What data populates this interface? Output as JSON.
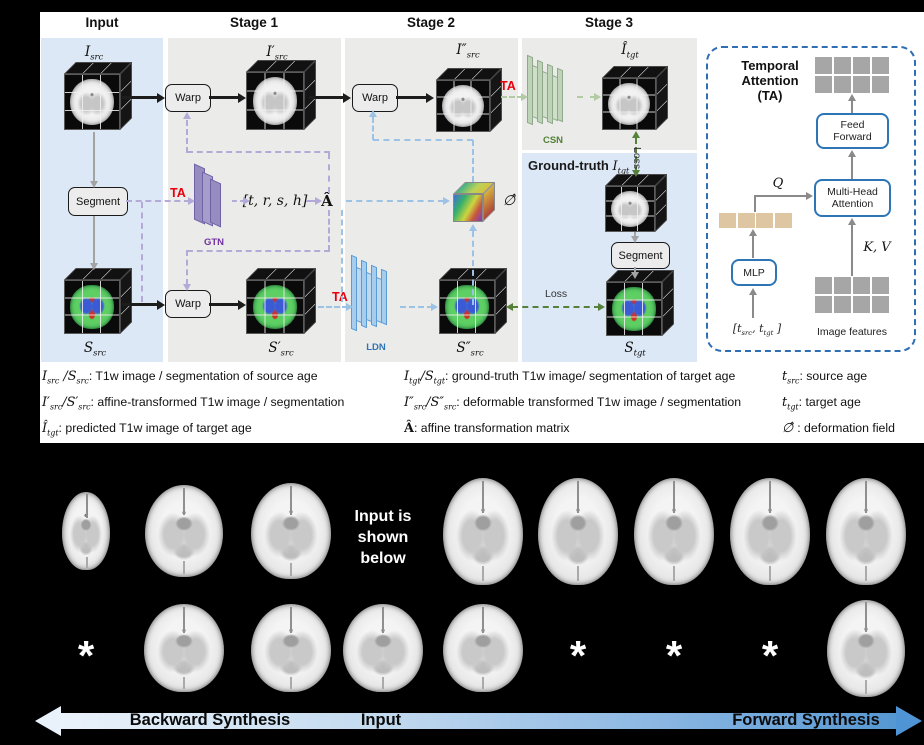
{
  "figure": {
    "stages": [
      "Input",
      "Stage 1",
      "Stage 2",
      "Stage 3"
    ],
    "ta_label": "TA",
    "loss_label": "Loss",
    "boxes": {
      "warp": "Warp",
      "segment": "Segment"
    },
    "networks": {
      "gtn": "GTN",
      "ldn": "LDN",
      "csn": "CSN"
    },
    "nodes": {
      "i_src": "I_{src}",
      "i_src_prime": "I′_{src}",
      "i_src_dprime": "I″_{src}",
      "i_tgt_hat": "Î_{tgt}",
      "s_src": "S_{src}",
      "s_src_prime": "S′_{src}",
      "s_src_dprime": "S″_{src}",
      "s_tgt": "S_{tgt}",
      "gt_prefix": "Ground-truth",
      "gt_symbol": "I_{tgt}",
      "affine_vector": "[t, r, s, h]",
      "affine_matrix": "Â",
      "deformation_field": "∅̂"
    },
    "ta_module": {
      "title_lines": [
        "Temporal",
        "Attention",
        "(TA)"
      ],
      "feed_forward": "Feed Forward",
      "multi_head": "Multi-Head Attention",
      "mlp": "MLP",
      "q": "Q",
      "kv": "K, V",
      "time_input": "[t_{src},  t_{tgt} ]",
      "image_features": "Image features"
    },
    "legend": {
      "col1": [
        {
          "sym": "I_{src} /S_{src}",
          "text": ": T1w image / segmentation of source age"
        },
        {
          "sym": "I′_{src}/S′_{src}",
          "text": ": affine-transformed T1w image / segmentation"
        },
        {
          "sym": "Î_{tgt}",
          "text": ": predicted T1w image of target age"
        }
      ],
      "col2": [
        {
          "sym": "I_{tgt}/S_{tgt}",
          "text": ": ground-truth T1w image/ segmentation of target age"
        },
        {
          "sym": "I″_{src}/S″_{src}",
          "text": ": deformable transformed T1w image / segmentation"
        },
        {
          "sym": "Â",
          "text": ": affine transformation matrix"
        }
      ],
      "col3": [
        {
          "sym": "t_{src}",
          "text": ": source age"
        },
        {
          "sym": "t_{tgt}",
          "text": ": target age"
        },
        {
          "sym": "∅̂ ",
          "text": ": deformation field"
        }
      ]
    }
  },
  "results": {
    "note_lines": [
      "Input is",
      "shown",
      "below"
    ],
    "asterisk": "*",
    "row1": [
      "brain",
      "brain",
      "brain",
      "note",
      "brain",
      "brain",
      "brain",
      "brain",
      "brain"
    ],
    "row2": [
      "asterisk",
      "brain",
      "brain",
      "brain",
      "brain",
      "asterisk",
      "asterisk",
      "asterisk",
      "brain"
    ],
    "axis": {
      "backward": "Backward Synthesis",
      "input": "Input",
      "forward": "Forward Synthesis"
    }
  },
  "colors": {
    "ta_red": "#e8000d",
    "gtn_purple": "#7030a0",
    "ldn_blue": "#2e75b6",
    "csn_green": "#538135",
    "panel_blue": "#dce8f6",
    "panel_gray": "#ebebe9",
    "ta_box_border": "#2f6eb3",
    "loss_green": "#55813a"
  }
}
